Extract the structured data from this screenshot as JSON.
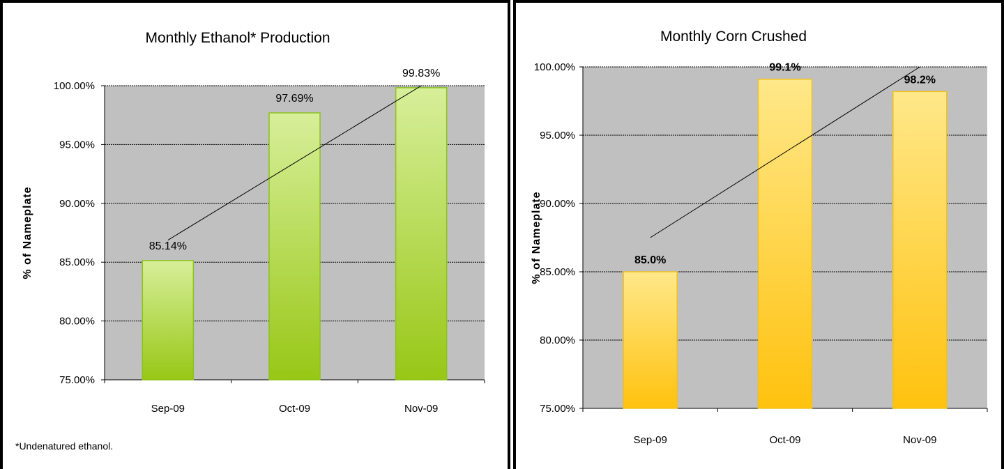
{
  "colors": {
    "plot_bg": "#c0c0c0",
    "green_top": "#d7ef9a",
    "green_bottom": "#98c716",
    "green_edge": "#8cc21c",
    "yellow_top": "#ffe88a",
    "yellow_bottom": "#ffc20e",
    "yellow_edge": "#f0c020"
  },
  "footnote": "*Undenatured ethanol.",
  "chart_data": [
    {
      "type": "bar",
      "title": "Monthly Ethanol* Production",
      "ylabel": "% of Nameplate",
      "xlabel": "",
      "categories": [
        "Sep-09",
        "Oct-09",
        "Nov-09"
      ],
      "values": [
        85.14,
        97.69,
        99.83
      ],
      "data_labels": [
        "85.14%",
        "97.69%",
        "99.83%"
      ],
      "ylim": [
        75,
        100
      ],
      "yticks": [
        75,
        80,
        85,
        90,
        95,
        100
      ],
      "ytick_labels": [
        "75.00%",
        "80.00%",
        "85.00%",
        "90.00%",
        "95.00%",
        "100.00%"
      ],
      "trendline": "linear",
      "grid": true,
      "bar_color": "green",
      "label_bold": false
    },
    {
      "type": "bar",
      "title": "Monthly Corn Crushed",
      "ylabel": "% of Nameplate",
      "xlabel": "",
      "categories": [
        "Sep-09",
        "Oct-09",
        "Nov-09"
      ],
      "values": [
        85.0,
        99.1,
        98.2
      ],
      "data_labels": [
        "85.0%",
        "99.1%",
        "98.2%"
      ],
      "ylim": [
        75,
        100
      ],
      "yticks": [
        75,
        80,
        85,
        90,
        95,
        100
      ],
      "ytick_labels": [
        "75.00%",
        "80.00%",
        "85.00%",
        "90.00%",
        "95.00%",
        "100.00%"
      ],
      "trendline": "linear",
      "grid": true,
      "bar_color": "yellow",
      "label_bold": true
    }
  ]
}
